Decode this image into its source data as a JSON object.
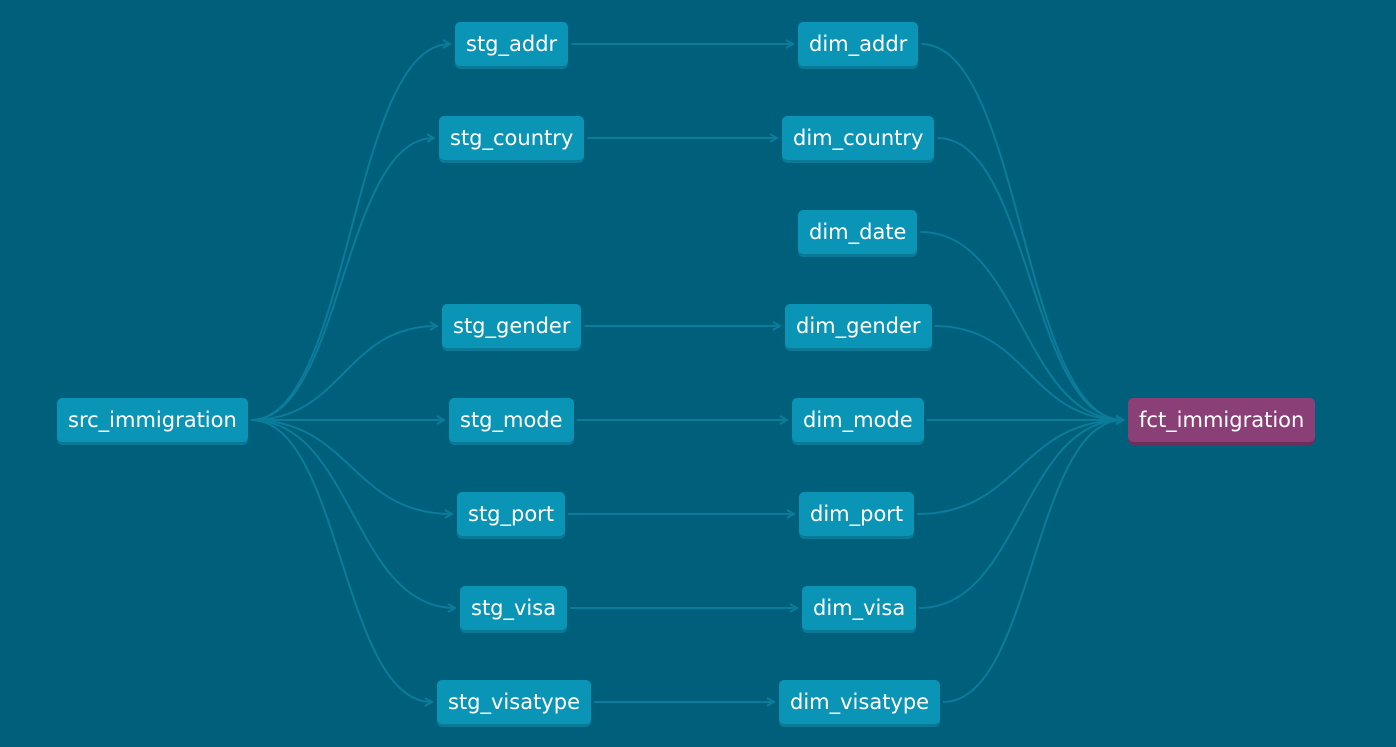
{
  "colors": {
    "background": "#005f7a",
    "node": "#0a94b5",
    "node_accent": "#8a3f77",
    "edge": "#0b7c9a"
  },
  "nodes": {
    "src_immigration": "src_immigration",
    "stg_addr": "stg_addr",
    "stg_country": "stg_country",
    "stg_gender": "stg_gender",
    "stg_mode": "stg_mode",
    "stg_port": "stg_port",
    "stg_visa": "stg_visa",
    "stg_visatype": "stg_visatype",
    "dim_addr": "dim_addr",
    "dim_country": "dim_country",
    "dim_date": "dim_date",
    "dim_gender": "dim_gender",
    "dim_mode": "dim_mode",
    "dim_port": "dim_port",
    "dim_visa": "dim_visa",
    "dim_visatype": "dim_visatype",
    "fct_immigration": "fct_immigration"
  },
  "edges": [
    [
      "src_immigration",
      "stg_addr"
    ],
    [
      "src_immigration",
      "stg_country"
    ],
    [
      "src_immigration",
      "stg_gender"
    ],
    [
      "src_immigration",
      "stg_mode"
    ],
    [
      "src_immigration",
      "stg_port"
    ],
    [
      "src_immigration",
      "stg_visa"
    ],
    [
      "src_immigration",
      "stg_visatype"
    ],
    [
      "stg_addr",
      "dim_addr"
    ],
    [
      "stg_country",
      "dim_country"
    ],
    [
      "stg_gender",
      "dim_gender"
    ],
    [
      "stg_mode",
      "dim_mode"
    ],
    [
      "stg_port",
      "dim_port"
    ],
    [
      "stg_visa",
      "dim_visa"
    ],
    [
      "stg_visatype",
      "dim_visatype"
    ],
    [
      "dim_addr",
      "fct_immigration"
    ],
    [
      "dim_country",
      "fct_immigration"
    ],
    [
      "dim_date",
      "fct_immigration"
    ],
    [
      "dim_gender",
      "fct_immigration"
    ],
    [
      "dim_mode",
      "fct_immigration"
    ],
    [
      "dim_port",
      "fct_immigration"
    ],
    [
      "dim_visa",
      "fct_immigration"
    ],
    [
      "dim_visatype",
      "fct_immigration"
    ]
  ]
}
